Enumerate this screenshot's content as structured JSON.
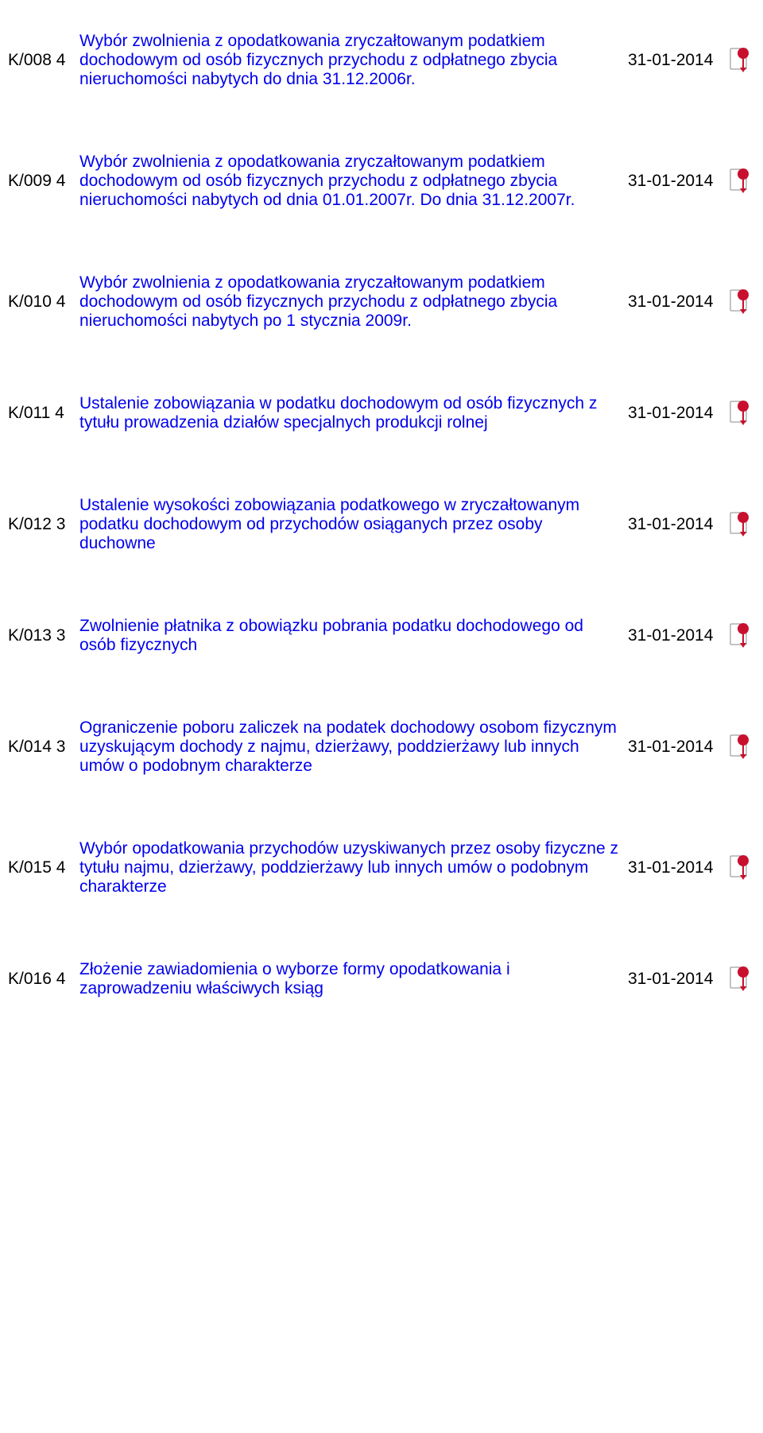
{
  "rows": [
    {
      "code": "K/008 4",
      "link_text": "Wybór zwolnienia z opodatkowania zryczałtowanym podatkiem dochodowym od osób fizycznych przychodu z odpłatnego zbycia nieruchomości nabytych do dnia 31.12.2006r.",
      "date": "31-01-2014"
    },
    {
      "code": "K/009 4",
      "link_text": "Wybór zwolnienia z opodatkowania zryczałtowanym podatkiem dochodowym od osób fizycznych przychodu z odpłatnego zbycia nieruchomości nabytych od dnia 01.01.2007r. Do dnia 31.12.2007r.",
      "date": "31-01-2014"
    },
    {
      "code": "K/010 4",
      "link_text": "Wybór zwolnienia z opodatkowania zryczałtowanym podatkiem dochodowym od osób fizycznych przychodu z odpłatnego zbycia nieruchomości nabytych po 1 stycznia 2009r.",
      "date": "31-01-2014"
    },
    {
      "code": "K/011 4",
      "link_text": "Ustalenie zobowiązania w podatku dochodowym od osób fizycznych z tytułu prowadzenia działów specjalnych produkcji rolnej",
      "date": "31-01-2014"
    },
    {
      "code": "K/012 3",
      "link_text": "Ustalenie wysokości zobowiązania podatkowego w zryczałtowanym podatku dochodowym od przychodów osiąganych przez osoby duchowne",
      "date": "31-01-2014"
    },
    {
      "code": "K/013 3",
      "link_text": "Zwolnienie płatnika z obowiązku pobrania podatku dochodowego od osób fizycznych",
      "date": "31-01-2014"
    },
    {
      "code": "K/014 3",
      "link_text": "Ograniczenie poboru zaliczek na podatek dochodowy osobom fizycznym uzyskującym dochody z najmu, dzierżawy, poddzierżawy lub innych umów o podobnym charakterze",
      "date": "31-01-2014"
    },
    {
      "code": "K/015 4",
      "link_text": "Wybór opodatkowania przychodów uzyskiwanych przez osoby fizyczne z tytułu najmu, dzierżawy, poddzierżawy lub innych umów o podobnym charakterze",
      "date": "31-01-2014"
    },
    {
      "code": "K/016 4",
      "link_text": "Złożenie zawiadomienia o wyborze formy opodatkowania i zaprowadzeniu właściwych ksiąg",
      "date": "31-01-2014"
    }
  ],
  "icon": {
    "name": "pdf-icon",
    "fill": "#c8102e",
    "page_fill": "#ffffff",
    "page_stroke": "#888888"
  }
}
